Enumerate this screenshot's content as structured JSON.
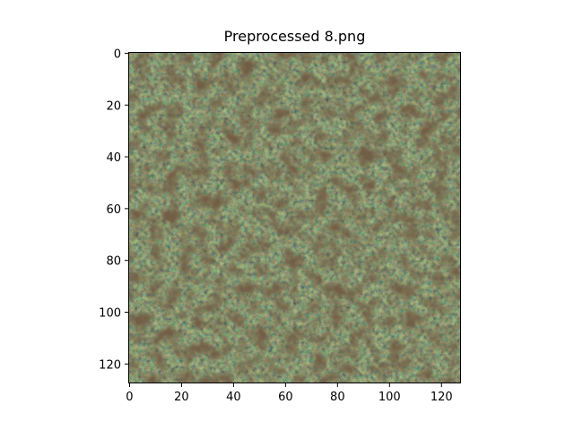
{
  "chart_data": {
    "type": "image",
    "title": "Preprocessed 8.png",
    "xlabel": "",
    "ylabel": "",
    "xlim": [
      0,
      127
    ],
    "ylim": [
      127,
      0
    ],
    "x_ticks": [
      0,
      20,
      40,
      60,
      80,
      100,
      120
    ],
    "y_ticks": [
      0,
      20,
      40,
      60,
      80,
      100,
      120
    ],
    "grid": false,
    "image_content": "aerial forest canopy texture",
    "colors": {
      "base": "#4a4a26",
      "dark_shadow": "#2b1c10",
      "light_foliage": "#6f7a42",
      "highlight": "#8a8e60"
    }
  }
}
